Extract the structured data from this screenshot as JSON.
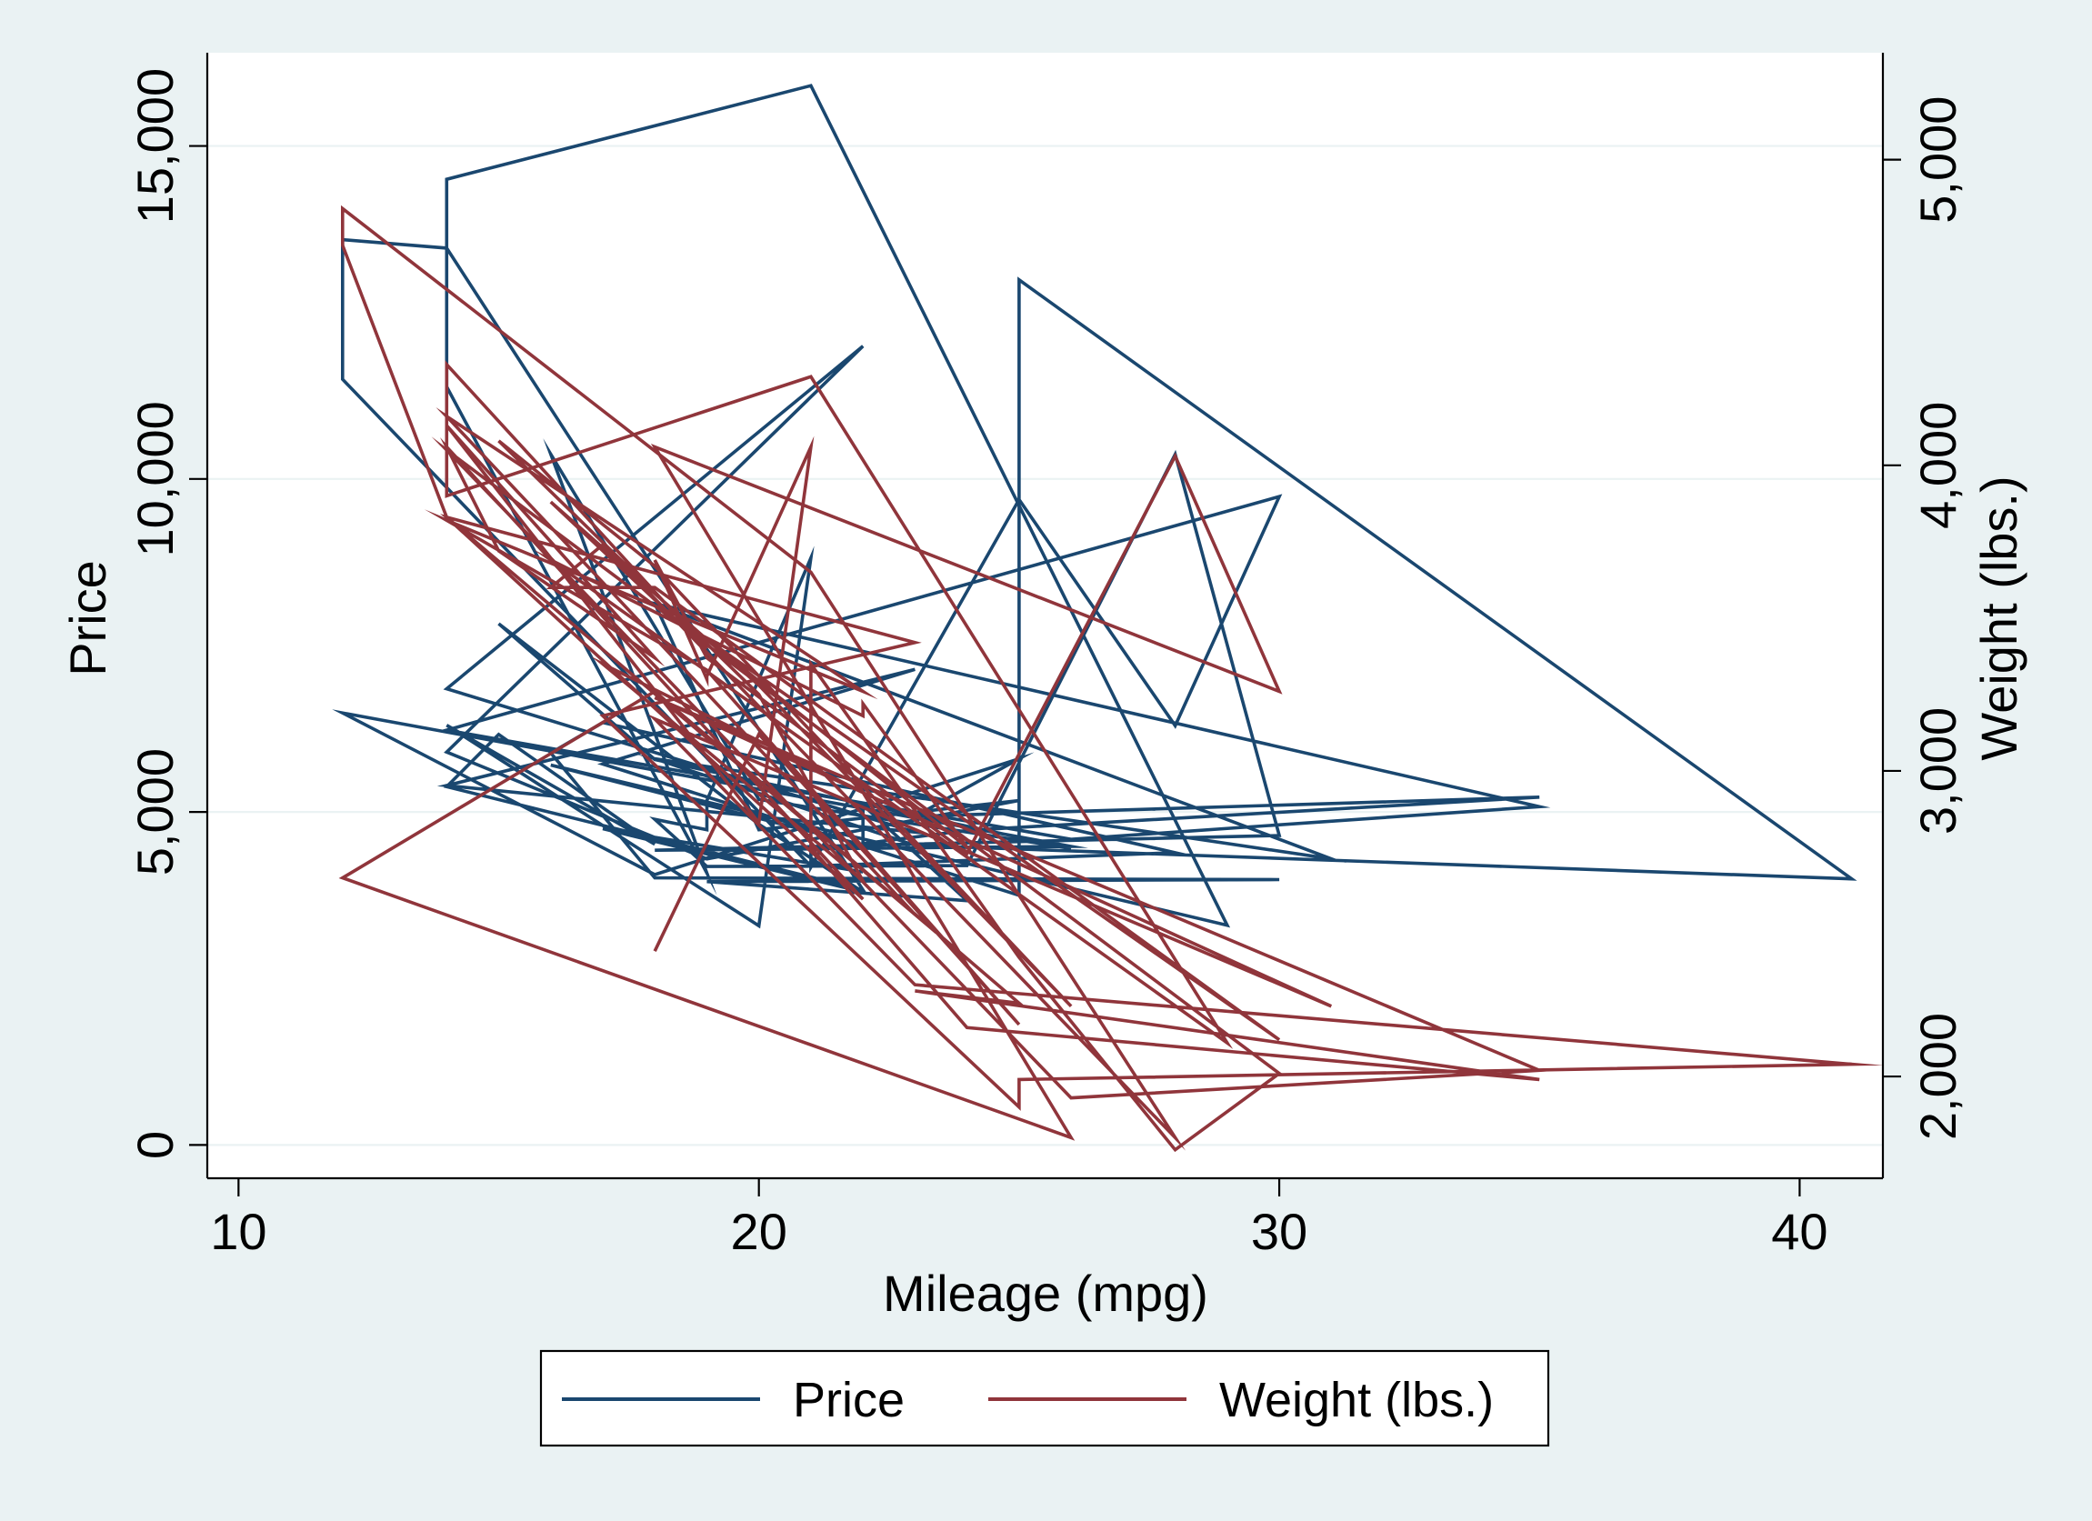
{
  "chart_data": {
    "type": "line",
    "title": "",
    "xlabel": "Mileage (mpg)",
    "ylabel": "Price",
    "y2label": "Weight (lbs.)",
    "xlim": [
      9.4,
      41.6
    ],
    "ylim": [
      -500,
      16400
    ],
    "y2lim": [
      1667,
      5350
    ],
    "xticks": [
      "10",
      "20",
      "30",
      "40"
    ],
    "xtick_values": [
      10,
      20,
      30,
      40
    ],
    "yticks": [
      "0",
      "5,000",
      "10,000",
      "15,000"
    ],
    "ytick_values": [
      0,
      5000,
      10000,
      15000
    ],
    "y2ticks": [
      "2,000",
      "3,000",
      "4,000",
      "5,000"
    ],
    "y2tick_values": [
      2000,
      3000,
      4000,
      5000
    ],
    "grid": true,
    "legend_position": "bottom",
    "colors": {
      "price": "#1a476f",
      "weight": "#90353b",
      "background": "#eaf2f3",
      "plot_bg": "#ffffff",
      "grid": "#eaf2f3"
    },
    "series": [
      {
        "name": "Price",
        "axis": "left",
        "x": [
          22,
          17,
          22,
          20,
          15,
          18,
          26,
          20,
          16,
          19,
          14,
          14,
          21,
          29,
          16,
          22,
          22,
          24,
          19,
          30,
          18,
          16,
          17,
          28,
          21,
          12,
          12,
          14,
          22,
          14,
          15,
          18,
          14,
          20,
          21,
          19,
          19,
          18,
          19,
          24,
          28,
          30,
          18,
          26,
          12,
          18,
          25,
          23,
          35,
          24,
          21,
          21,
          25,
          28,
          30,
          14,
          26,
          35,
          18,
          31,
          18,
          23,
          41,
          25,
          25,
          17,
          23,
          14,
          23,
          14,
          22,
          14,
          19,
          25,
          20,
          18
        ],
        "y": [
          4099,
          4749,
          3799,
          4816,
          7827,
          5788,
          4453,
          5189,
          10372,
          4082,
          11385,
          14500,
          15906,
          3299,
          5705,
          4504,
          5104,
          3667,
          3955,
          3984,
          4010,
          5886,
          6342,
          4389,
          4187,
          11497,
          13594,
          13466,
          3829,
          5379,
          6165,
          4516,
          6303,
          3291,
          8814,
          5172,
          4733,
          4890,
          4181,
          4195,
          10371,
          4647,
          4425,
          4482,
          6486,
          4060,
          5798,
          4934,
          5222,
          4723,
          4424,
          4172,
          9690,
          6295,
          9735,
          6229,
          4589,
          5079,
          8129,
          4296,
          5799,
          4499,
          3995,
          12990,
          3748,
          5719,
          7140,
          5397,
          4697,
          6850,
          11995,
          5899,
          4296,
          5172,
          4733,
          8129
        ]
      },
      {
        "name": "Weight (lbs.)",
        "axis": "right",
        "x": [
          22,
          17,
          22,
          20,
          15,
          18,
          26,
          20,
          16,
          19,
          14,
          14,
          21,
          29,
          16,
          22,
          22,
          24,
          19,
          30,
          18,
          16,
          17,
          28,
          21,
          12,
          12,
          14,
          22,
          14,
          15,
          18,
          14,
          20,
          21,
          19,
          19,
          18,
          19,
          24,
          28,
          30,
          18,
          26,
          12,
          18,
          25,
          23,
          35,
          24,
          21,
          21,
          25,
          28,
          30,
          14,
          26,
          35,
          18,
          31,
          18,
          23,
          41,
          25,
          25,
          17,
          23,
          14,
          23,
          14,
          22,
          14,
          19,
          25,
          20,
          18
        ],
        "y": [
          2930,
          3350,
          2640,
          3250,
          4080,
          3670,
          2230,
          3280,
          3880,
          3400,
          4330,
          3900,
          4290,
          2110,
          3690,
          3180,
          3220,
          2750,
          3430,
          2120,
          3600,
          3600,
          3740,
          1800,
          3650,
          4840,
          4720,
          3830,
          2580,
          4060,
          3720,
          3370,
          4130,
          2830,
          4060,
          3310,
          3300,
          3690,
          3370,
          2730,
          4030,
          3260,
          4060,
          1800,
          2650,
          3260,
          2240,
          2280,
          1990,
          2160,
          2750,
          3350,
          2390,
          1760,
          2010,
          4050,
          1930,
          2020,
          3240,
          2230,
          3170,
          2300,
          2040,
          1990,
          1900,
          3180,
          3420,
          3830,
          2530,
          4160,
          3260,
          3820,
          3330,
          2170,
          3120,
          2410
        ]
      }
    ]
  }
}
